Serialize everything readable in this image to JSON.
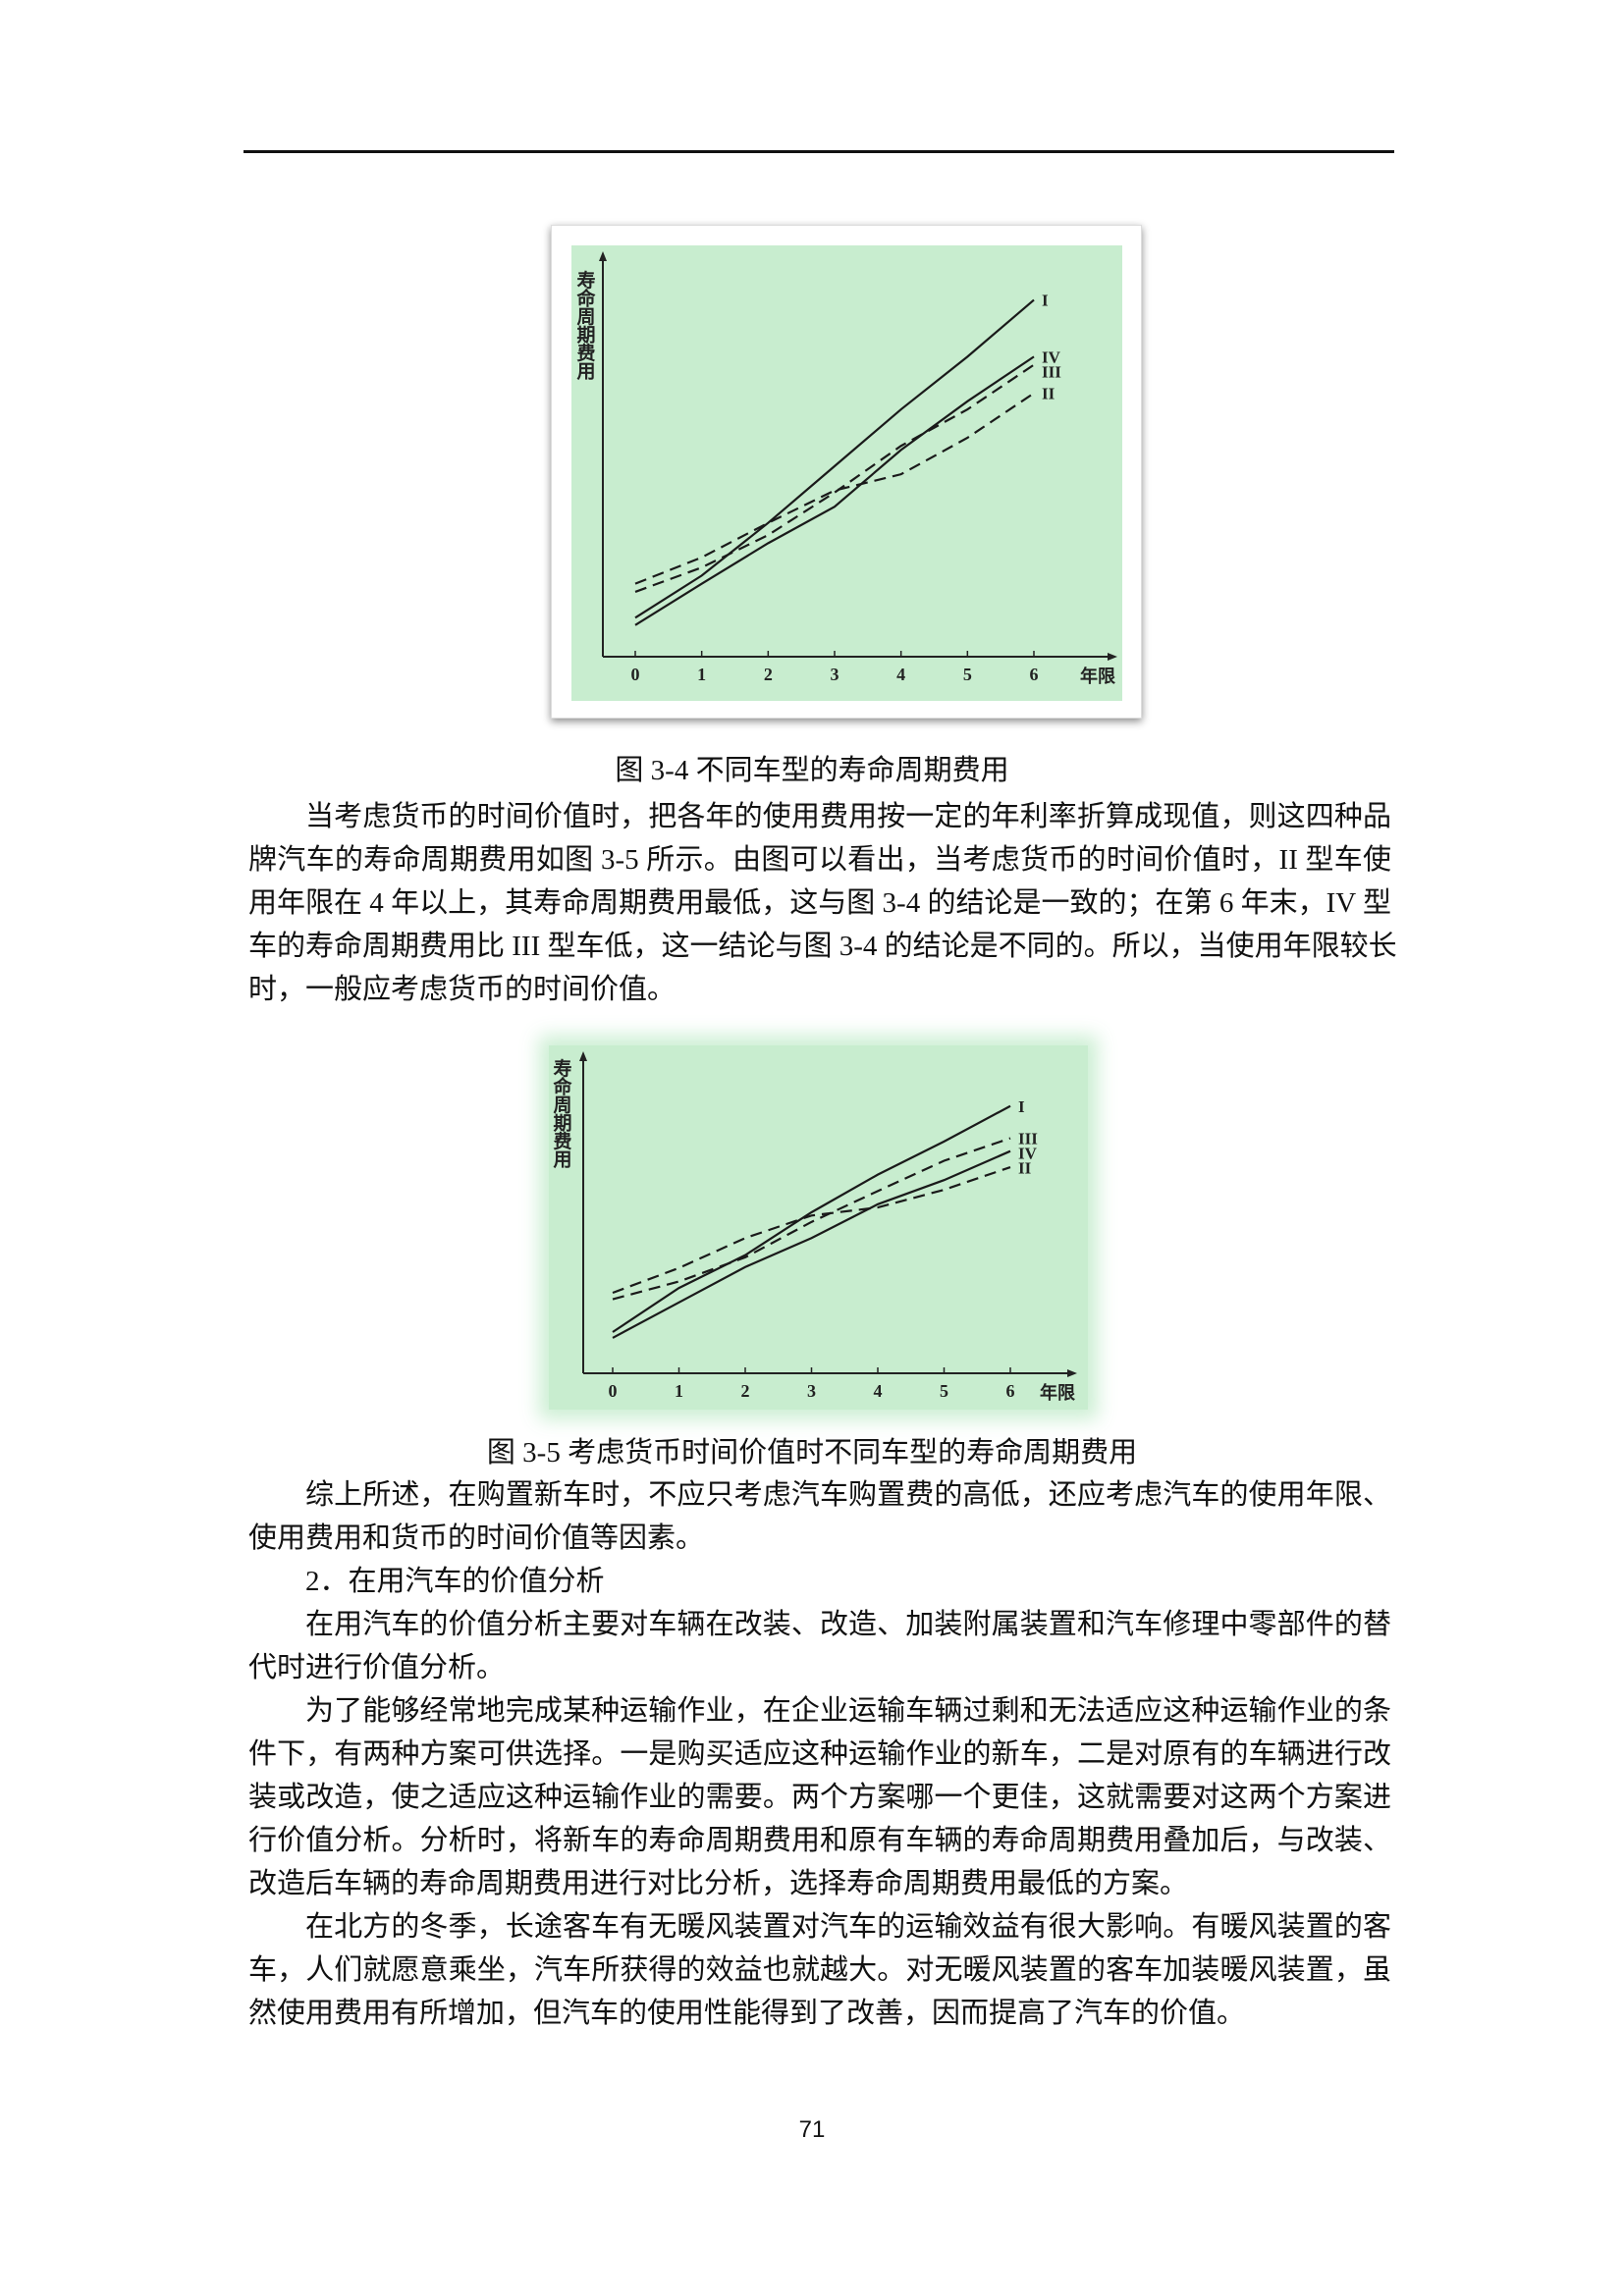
{
  "figures": [
    {
      "caption": "图 3-4 不同车型的寿命周期费用",
      "background": "#c8edcf",
      "chart_data": {
        "type": "line",
        "title": "",
        "xlabel": "年限",
        "ylabel": "寿命周期费用",
        "x": [
          0,
          1,
          2,
          3,
          4,
          5,
          6
        ],
        "xlim": [
          0,
          6
        ],
        "ylim": [
          0,
          100
        ],
        "x_tick_labels": [
          "0",
          "1",
          "2",
          "3",
          "4",
          "5",
          "6"
        ],
        "grid": false,
        "series": [
          {
            "name": "I",
            "style": "solid",
            "values": [
              9.6,
              20,
              33,
              47,
              61,
              74,
              88
            ]
          },
          {
            "name": "IV",
            "style": "solid",
            "values": [
              7.8,
              18,
              28,
              37,
              51,
              63,
              74
            ]
          },
          {
            "name": "III",
            "style": "dashed",
            "values": [
              16,
              22,
              30,
              40.5,
              52,
              61,
              72
            ]
          },
          {
            "name": "II",
            "style": "dashed",
            "values": [
              18,
              24.5,
              33,
              41,
              45,
              54,
              65
            ]
          }
        ]
      }
    },
    {
      "caption": "图 3-5  考虑货币时间价值时不同车型的寿命周期费用",
      "background": "#c8edcf",
      "chart_data": {
        "type": "line",
        "title": "",
        "xlabel": "年限",
        "ylabel": "寿命周期费用",
        "x": [
          0,
          1,
          2,
          3,
          4,
          5,
          6
        ],
        "xlim": [
          0,
          6
        ],
        "ylim": [
          0,
          100
        ],
        "x_tick_labels": [
          "0",
          "1",
          "2",
          "3",
          "4",
          "5",
          "6"
        ],
        "grid": false,
        "series": [
          {
            "name": "I",
            "style": "solid",
            "values": [
              12.8,
              26.5,
              36.7,
              50,
              61.7,
              72,
              83
            ]
          },
          {
            "name": "III",
            "style": "dashed",
            "values": [
              23,
              28.5,
              36,
              47,
              56.6,
              66,
              73
            ]
          },
          {
            "name": "IV",
            "style": "solid",
            "values": [
              11,
              22,
              33,
              42,
              52.5,
              60,
              69
            ]
          },
          {
            "name": "II",
            "style": "dashed",
            "values": [
              25,
              32.7,
              42,
              49,
              51.5,
              57,
              64
            ]
          }
        ]
      }
    }
  ],
  "text1": [
    "当考虑货币的时间价值时，把各年的使用费用按一定的年利率折算成现值，则这四种品",
    "牌汽车的寿命周期费用如图 3-5 所示。由图可以看出，当考虑货币的时间价值时，II 型车使",
    "用年限在 4 年以上，其寿命周期费用最低，这与图 3-4 的结论是一致的；在第 6 年末，IV 型",
    "车的寿命周期费用比 III 型车低，这一结论与图 3-4 的结论是不同的。所以，当使用年限较长",
    "时，一般应考虑货币的时间价值。"
  ],
  "text2": [
    "综上所述，在购置新车时，不应只考虑汽车购置费的高低，还应考虑汽车的使用年限、",
    "使用费用和货币的时间价值等因素。",
    "2．在用汽车的价值分析",
    "在用汽车的价值分析主要对车辆在改装、改造、加装附属装置和汽车修理中零部件的替",
    "代时进行价值分析。",
    "为了能够经常地完成某种运输作业，在企业运输车辆过剩和无法适应这种运输作业的条",
    "件下，有两种方案可供选择。一是购买适应这种运输作业的新车，二是对原有的车辆进行改",
    "装或改造，使之适应这种运输作业的需要。两个方案哪一个更佳，这就需要对这两个方案进",
    "行价值分析。分析时，将新车的寿命周期费用和原有车辆的寿命周期费用叠加后，与改装、",
    "改造后车辆的寿命周期费用进行对比分析，选择寿命周期费用最低的方案。",
    "在北方的冬季，长途客车有无暖风装置对汽车的运输效益有很大影响。有暖风装置的客",
    "车，人们就愿意乘坐，汽车所获得的效益也就越大。对无暖风装置的客车加装暖风装置，虽",
    "然使用费用有所增加，但汽车的使用性能得到了改善，因而提高了汽车的价值。"
  ],
  "page_number": "71"
}
